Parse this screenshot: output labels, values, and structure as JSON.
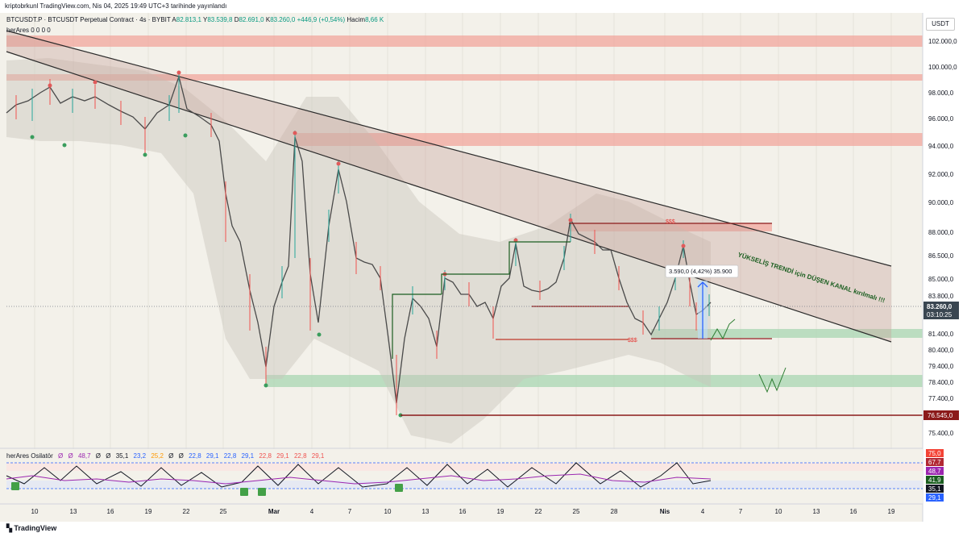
{
  "header": {
    "caption": "kriptobrkunl TradingView.com, Nis 04, 2025 19:49 UTC+3 tarihinde yayınlandı"
  },
  "symbol": {
    "title": "BTCUSDT.P · BTCUSDT Perpetual Contract · 4s · BYBIT",
    "open_label": "A",
    "open": "82.813,1",
    "high_label": "Y",
    "high": "83.539,8",
    "low_label": "D",
    "low": "82.691,0",
    "close_label": "K",
    "close": "83.260,0",
    "change": "+446,9 (+0,54%)",
    "volume_label": "Hacim",
    "volume": "8,66 K"
  },
  "indicator": {
    "name": "herAres",
    "params": "0 0 0 0"
  },
  "currency": "USDT",
  "price_axis": {
    "labels": [
      "102.000,0",
      "100.000,0",
      "98.000,0",
      "96.000,0",
      "94.000,0",
      "92.000,0",
      "90.000,0",
      "88.000,0",
      "86.500,0",
      "85.000,0",
      "83.800,0",
      "81.400,0",
      "80.400,0",
      "79.400,0",
      "78.400,0",
      "77.400,0",
      "75.400,0"
    ],
    "current_price": "83.260,0",
    "countdown": "03:10:25",
    "marker_price": "76.545,0"
  },
  "time_axis": {
    "labels": [
      "10",
      "13",
      "16",
      "19",
      "22",
      "25",
      "Mar",
      "4",
      "7",
      "10",
      "13",
      "16",
      "19",
      "22",
      "25",
      "28",
      "Nis",
      "4",
      "7",
      "10",
      "13",
      "16",
      "19"
    ]
  },
  "annotations": {
    "liquidity_high": "$$$",
    "liquidity_low": "$$$",
    "measure": "3.590,0 (4,42%) 35.900",
    "channel_note": "YÜKSELİŞ TRENDİ için DÜŞEN KANAL kırılmalı !!!"
  },
  "oscillator": {
    "name": "herAres Osilatör",
    "values": [
      "Ø",
      "Ø",
      "48,7",
      "Ø",
      "Ø",
      "35,1",
      "23,2",
      "25,2",
      "Ø",
      "Ø",
      "22,8",
      "29,1",
      "22,8",
      "29,1",
      "22,8",
      "29,1",
      "22,8",
      "29,1"
    ],
    "axis_labels": [
      {
        "text": "75,0",
        "color": "#f44336"
      },
      {
        "text": "67,7",
        "color": "#b22833"
      },
      {
        "text": "48,7",
        "color": "#9c27b0"
      },
      {
        "text": "41,9",
        "color": "#1b5e20"
      },
      {
        "text": "35,1",
        "color": "#131722"
      },
      {
        "text": "29,1",
        "color": "#2962ff"
      }
    ]
  },
  "colors": {
    "up": "#26a69a",
    "down": "#ef5350",
    "channel_fill": "#b08080",
    "resistance": "#f28b82",
    "support": "#81c995",
    "accent": "#2962ff"
  },
  "footer": {
    "brand": "TradingView"
  }
}
